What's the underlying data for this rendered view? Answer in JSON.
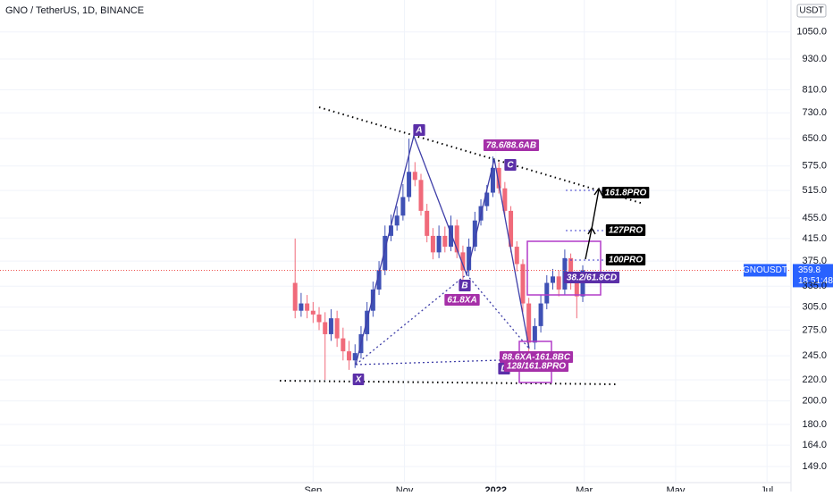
{
  "chart_data": {
    "type": "candlestick",
    "title": "GNO / TetherUS, 1D, BINANCE",
    "currency": "USDT",
    "symbol": "GNOUSDT",
    "last_price": 359.8,
    "countdown": "18:51:48",
    "log_scale": true,
    "up_color": "#3f51b5",
    "down_color": "#f06a7a",
    "xlim": [
      -209,
      319
    ],
    "xticks": [
      {
        "value": 0,
        "label": "Sep"
      },
      {
        "value": 61,
        "label": "Nov"
      },
      {
        "value": 122,
        "label": "2022"
      },
      {
        "value": 181,
        "label": "Mar"
      },
      {
        "value": 242,
        "label": "May"
      },
      {
        "value": 303,
        "label": "Jul"
      }
    ],
    "ylim": [
      138.6,
      1212
    ],
    "yticks": [
      {
        "value": 149,
        "label": "149.0"
      },
      {
        "value": 164,
        "label": "164.0"
      },
      {
        "value": 180,
        "label": "180.0"
      },
      {
        "value": 200,
        "label": "200.0"
      },
      {
        "value": 220,
        "label": "220.0"
      },
      {
        "value": 245,
        "label": "245.0"
      },
      {
        "value": 275,
        "label": "275.0"
      },
      {
        "value": 305,
        "label": "305.0"
      },
      {
        "value": 335,
        "label": "335.0"
      },
      {
        "value": 375,
        "label": "375.0"
      },
      {
        "value": 415,
        "label": "415.0"
      },
      {
        "value": 455,
        "label": "455.0"
      },
      {
        "value": 515,
        "label": "515.0"
      },
      {
        "value": 575,
        "label": "575.0"
      },
      {
        "value": 650,
        "label": "650.0"
      },
      {
        "value": 730,
        "label": "730.0"
      },
      {
        "value": 810,
        "label": "810.0"
      },
      {
        "value": 930,
        "label": "930.0"
      },
      {
        "value": 1050,
        "label": "1050.0"
      }
    ],
    "x": [
      -12,
      -8,
      -4,
      0,
      4,
      8,
      12,
      16,
      20,
      24,
      28,
      32,
      36,
      40,
      44,
      48,
      52,
      56,
      60,
      64,
      68,
      72,
      76,
      80,
      84,
      88,
      92,
      96,
      100,
      104,
      108,
      112,
      116,
      120,
      124,
      128,
      132,
      136,
      140,
      144,
      148,
      152,
      156,
      160,
      164,
      168,
      172,
      176,
      180
    ],
    "open": [
      340,
      300,
      310,
      300,
      295,
      285,
      270,
      290,
      265,
      250,
      240,
      248,
      270,
      300,
      330,
      360,
      420,
      440,
      460,
      500,
      560,
      540,
      470,
      420,
      390,
      420,
      400,
      440,
      390,
      360,
      400,
      450,
      480,
      510,
      570,
      520,
      470,
      400,
      370,
      310,
      260,
      280,
      310,
      340,
      350,
      330,
      380,
      340,
      320
    ],
    "high": [
      415,
      325,
      322,
      312,
      305,
      298,
      302,
      300,
      278,
      262,
      258,
      280,
      312,
      342,
      375,
      440,
      462,
      480,
      530,
      650,
      585,
      555,
      485,
      435,
      440,
      438,
      460,
      452,
      402,
      415,
      468,
      495,
      528,
      600,
      585,
      535,
      480,
      410,
      378,
      318,
      290,
      322,
      352,
      362,
      360,
      395,
      388,
      348,
      368
    ],
    "low": [
      290,
      292,
      290,
      284,
      275,
      220,
      262,
      255,
      240,
      230,
      232,
      242,
      262,
      292,
      322,
      352,
      410,
      430,
      450,
      490,
      525,
      460,
      408,
      378,
      380,
      390,
      392,
      380,
      345,
      350,
      392,
      440,
      470,
      500,
      508,
      458,
      390,
      358,
      298,
      240,
      252,
      272,
      302,
      330,
      320,
      322,
      330,
      290,
      312
    ],
    "close": [
      300,
      310,
      300,
      295,
      285,
      270,
      290,
      265,
      250,
      240,
      248,
      270,
      300,
      330,
      360,
      420,
      440,
      460,
      500,
      560,
      540,
      470,
      420,
      390,
      420,
      400,
      440,
      390,
      360,
      400,
      450,
      480,
      510,
      570,
      520,
      470,
      400,
      370,
      310,
      260,
      280,
      310,
      340,
      350,
      330,
      380,
      340,
      320,
      360
    ],
    "annotations": [
      "A",
      "B",
      "C",
      "D",
      "X",
      "78.6/88.6AB",
      "61.8XA",
      "88.6XA-161.8BC",
      "128/161.8PRO",
      "100PRO",
      "127PRO",
      "161.8PRO",
      "38.2/61.8CD"
    ]
  }
}
